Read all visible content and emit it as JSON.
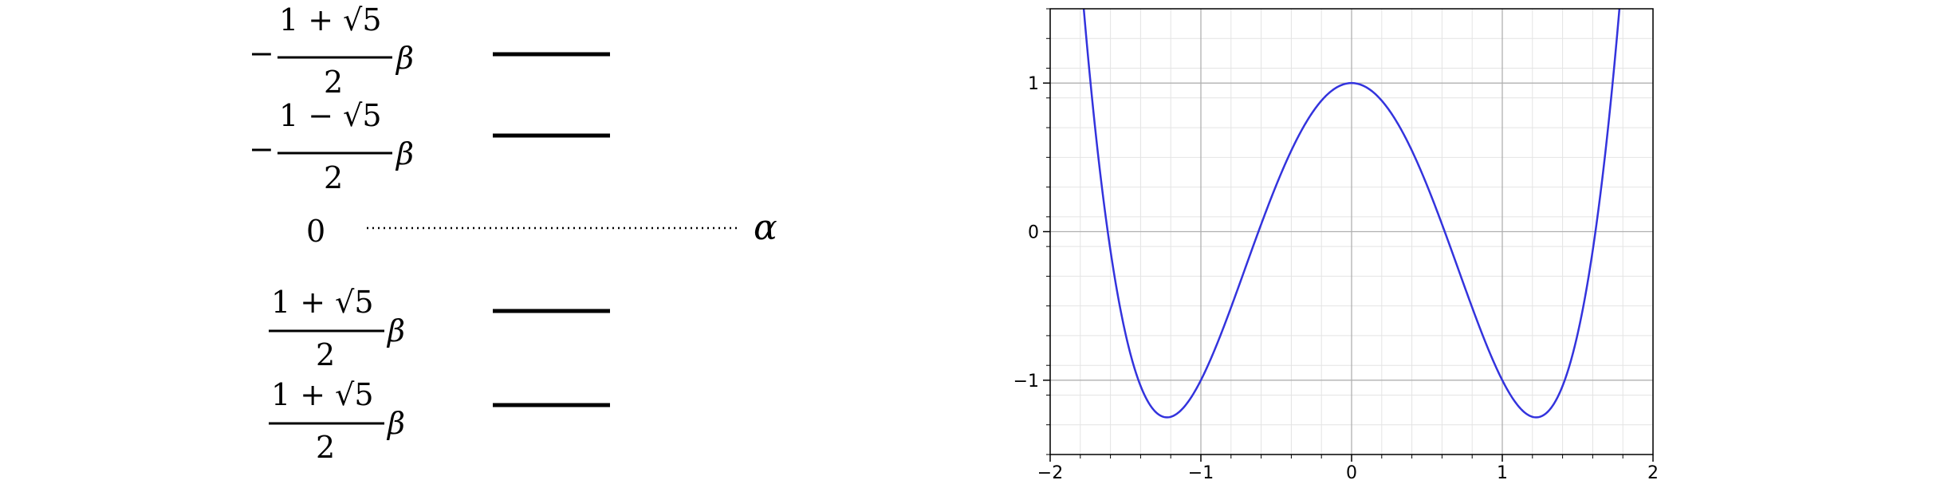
{
  "energy_diagram": {
    "levels": [
      {
        "sign": "−",
        "numerator": "1 + √5",
        "denominator": "2",
        "symbol": "β",
        "has_line": true
      },
      {
        "sign": "−",
        "numerator": "1 − √5",
        "denominator": "2",
        "symbol": "β",
        "has_line": true
      },
      {
        "value": "0",
        "dotted": true
      },
      {
        "sign": "",
        "numerator": "1 + √5",
        "denominator": "2",
        "symbol": "β",
        "has_line": true
      },
      {
        "sign": "",
        "numerator": "1 + √5",
        "denominator": "2",
        "symbol": "β",
        "has_line": true
      }
    ],
    "reference_symbol": "α"
  },
  "chart_data": {
    "type": "line",
    "function": "x^4 - 3x^2 + 1",
    "xlim": [
      -2,
      2
    ],
    "ylim": [
      -1.5,
      1.5
    ],
    "xticks": [
      -2,
      -1,
      0,
      1,
      2
    ],
    "xtick_labels": [
      "−2",
      "−1",
      "0",
      "1",
      "2"
    ],
    "yticks": [
      -1,
      0,
      1
    ],
    "ytick_labels": [
      "−1",
      "0",
      "1"
    ],
    "grid": true,
    "minor_grid": true,
    "series": [
      {
        "color": "#3333dd",
        "x_samples_from": -2,
        "x_samples_to": 2
      }
    ]
  }
}
